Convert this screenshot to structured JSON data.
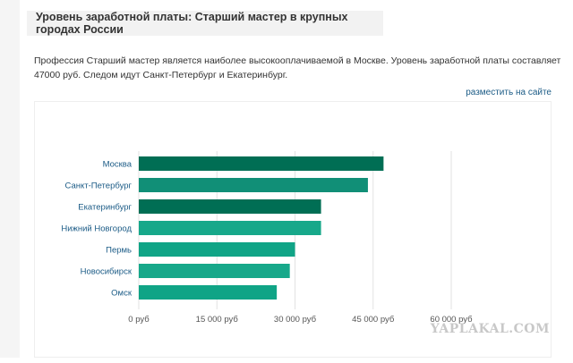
{
  "header": {
    "title": "Уровень заработной платы: Старший мастер в крупных городах России"
  },
  "description": "Профессия Старший мастер является наиболее высокооплачиваемой в Москве. Уровень заработной платы составляет 47000 руб. Следом идут Санкт-Петербург и Екатеринбург.",
  "place_link": "разместить на сайте",
  "watermark": "YAPLAKAL.COM",
  "chart_data": {
    "type": "bar",
    "orientation": "horizontal",
    "categories": [
      "Москва",
      "Санкт-Петербург",
      "Екатеринбург",
      "Нижний Новгород",
      "Пермь",
      "Новосибирск",
      "Омск"
    ],
    "values": [
      47000,
      44000,
      35000,
      35000,
      30000,
      29000,
      26500
    ],
    "xlim": [
      0,
      60000
    ],
    "ticks": [
      0,
      15000,
      30000,
      45000,
      60000
    ],
    "tick_labels": [
      "0 руб",
      "15 000 руб",
      "30 000 руб",
      "45 000 руб",
      "60 000 руб"
    ],
    "grid": true,
    "colors": [
      "#006e54",
      "#118f77",
      "#006e54",
      "#17a88a",
      "#10a486",
      "#17a88a",
      "#10a486"
    ]
  }
}
